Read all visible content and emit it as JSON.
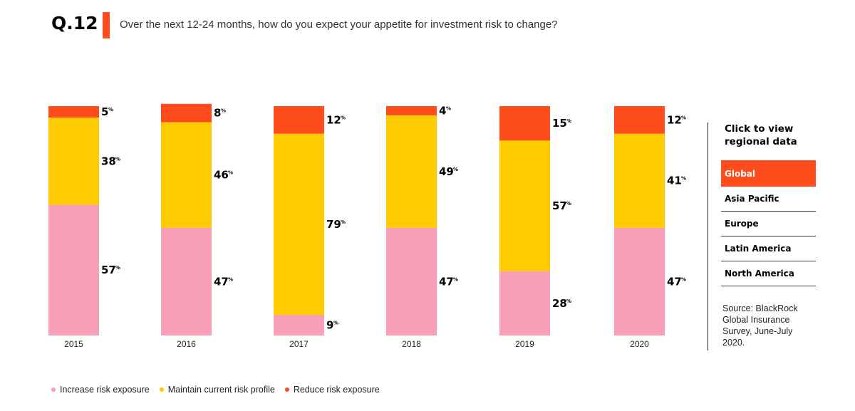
{
  "header": {
    "question_label": "Q.12",
    "question_text": "Over the next 12-24 months, how do you expect your appetite for investment risk to change?"
  },
  "colors": {
    "accent": "#ff4c1c",
    "increase": "#f9a0b8",
    "maintain": "#fdcc00",
    "reduce": "#ff4c1c"
  },
  "chart_data": {
    "type": "bar",
    "stacked": true,
    "categories": [
      "2015",
      "2016",
      "2017",
      "2018",
      "2019",
      "2020"
    ],
    "series": [
      {
        "name": "Increase risk exposure",
        "values": [
          57,
          47,
          9,
          47,
          28,
          47
        ]
      },
      {
        "name": "Maintain current risk profile",
        "values": [
          38,
          46,
          79,
          49,
          57,
          41
        ]
      },
      {
        "name": "Reduce risk exposure",
        "values": [
          5,
          8,
          12,
          4,
          15,
          12
        ]
      }
    ],
    "value_suffix": "%",
    "ylim": [
      0,
      100
    ],
    "grid": false,
    "legend_position": "bottom-left"
  },
  "panel": {
    "title": "Click to view regional data",
    "regions": [
      "Global",
      "Asia Pacific",
      "Europe",
      "Latin America",
      "North America"
    ],
    "active_region": "Global",
    "source": "Source: BlackRock Global Insurance Survey, June-July 2020."
  }
}
